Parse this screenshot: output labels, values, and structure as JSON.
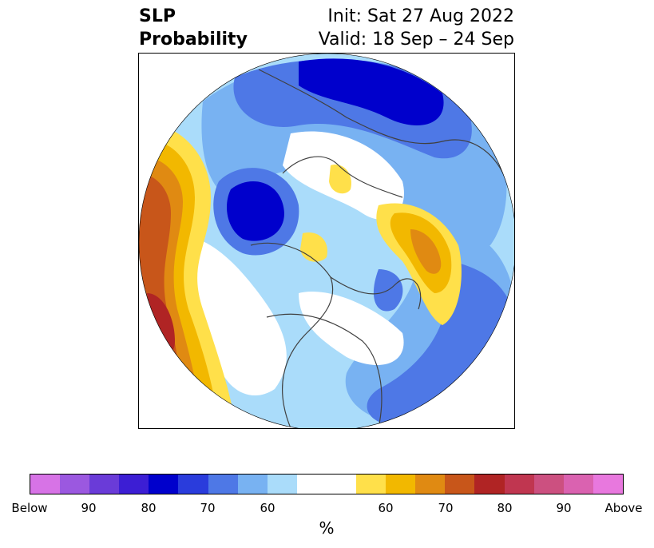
{
  "title": {
    "left_line1": "SLP",
    "left_line2": "Probability",
    "right_line1": "Init: Sat 27 Aug 2022",
    "right_line2": "Valid: 18 Sep – 24 Sep"
  },
  "map": {
    "projection": "north-polar-stereographic",
    "features": [
      "coastlines",
      "country-borders",
      "us-state-borders"
    ]
  },
  "colorbar": {
    "unit": "%",
    "colors": [
      "#d773e6",
      "#9b58e0",
      "#6a3bd8",
      "#3c1ed4",
      "#0000cc",
      "#2a3cdc",
      "#4e78e6",
      "#78b2f2",
      "#aadcfa",
      "#ffffff",
      "#ffffff",
      "#ffe04a",
      "#f2b800",
      "#e08a12",
      "#c8561a",
      "#b02424",
      "#c03650",
      "#cc5080",
      "#da62b0",
      "#e878de"
    ],
    "tick_labels": [
      "Below",
      "90",
      "80",
      "70",
      "60",
      "60",
      "70",
      "80",
      "90",
      "Above"
    ]
  }
}
